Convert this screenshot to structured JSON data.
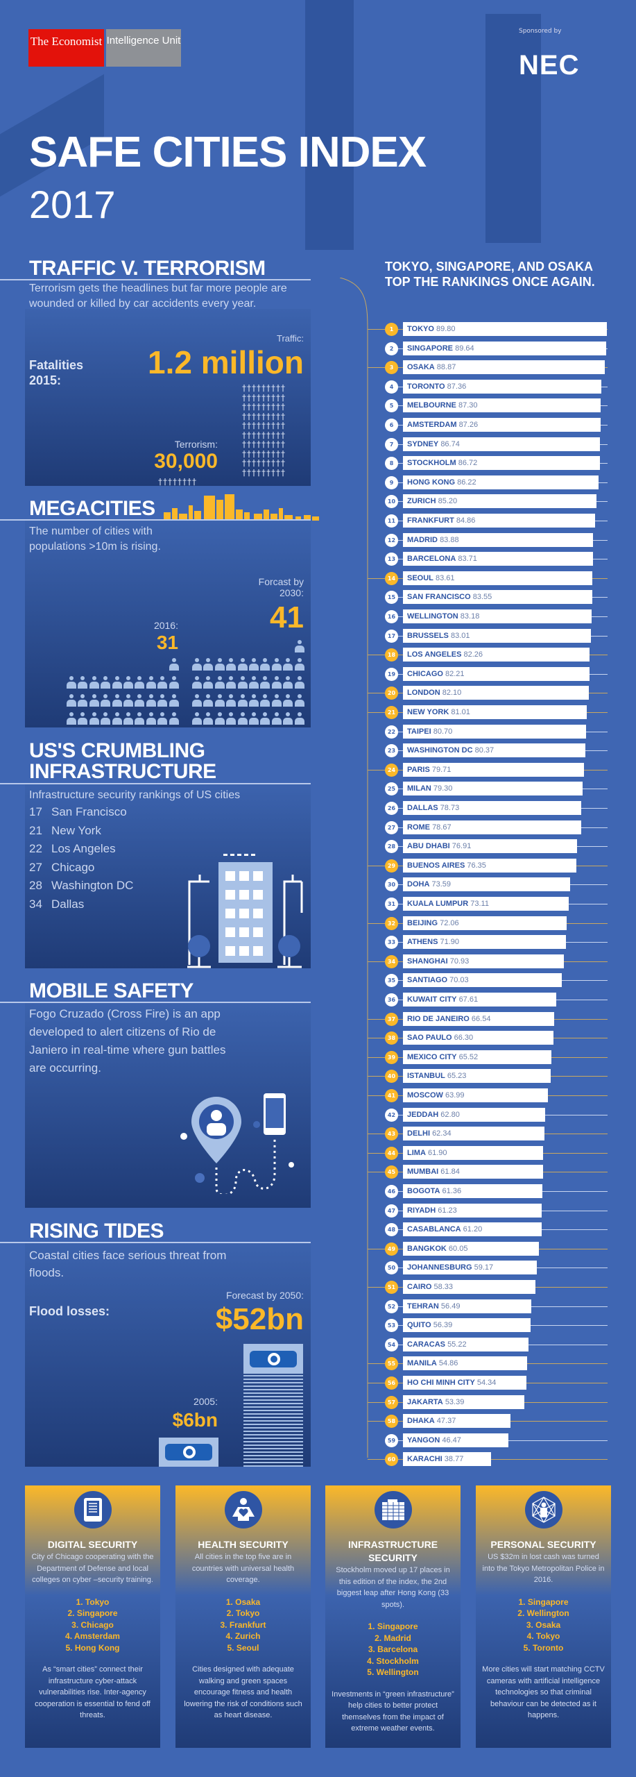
{
  "header": {
    "logo_left": "The Economist",
    "logo_right": "Intelligence Unit",
    "sponsored_by": "Sponsored by",
    "sponsor": "NEC",
    "title": "SAFE CITIES INDEX",
    "year": "2017"
  },
  "traffic": {
    "title": "TRAFFIC V. TERRORISM",
    "desc": "Terrorism gets the headlines but far more people are wounded or killed by car accidents every year.",
    "fatalities_label": "Fatalities 2015:",
    "traffic_label": "Traffic:",
    "traffic_value": "1.2 million",
    "terrorism_label": "Terrorism:",
    "terrorism_value": "30,000",
    "cross_icon": "cross-icon"
  },
  "megacities": {
    "title": "MEGACITIES",
    "desc": "The number of cities with populations >10m is rising.",
    "label_2016": "2016:",
    "value_2016": "31",
    "label_2030": "Forcast by 2030:",
    "value_2030": "41",
    "count_2016": 31,
    "count_2030": 41
  },
  "infrastructure_us": {
    "title": "US'S CRUMBLING INFRASTRUCTURE",
    "desc": "Infrastructure security rankings of US cities",
    "rows": [
      {
        "rank": "17",
        "city": "San Francisco"
      },
      {
        "rank": "21",
        "city": "New York"
      },
      {
        "rank": "22",
        "city": "Los Angeles"
      },
      {
        "rank": "27",
        "city": "Chicago"
      },
      {
        "rank": "28",
        "city": "Washington DC"
      },
      {
        "rank": "34",
        "city": "Dallas"
      }
    ]
  },
  "mobile": {
    "title": "MOBILE SAFETY",
    "desc": "Fogo Cruzado (Cross Fire) is an app developed to alert citizens of Rio de Janiero in real-time where gun battles are occurring."
  },
  "tides": {
    "title": "RISING TIDES",
    "desc": "Coastal cities face serious threat from floods.",
    "flood_label": "Flood losses:",
    "label_2050": "Forecast by 2050:",
    "value_2050": "$52bn",
    "label_2005": "2005:",
    "value_2005": "$6bn"
  },
  "rankings": {
    "heading": "TOKYO, SINGAPORE, AND OSAKA TOP THE RANKINGS ONCE AGAIN.",
    "colors": {
      "megacity_badge": "#fbb829",
      "other_badge": "#ffffff",
      "bar": "#ffffff",
      "city_text": "#2f55a4"
    },
    "items": [
      {
        "rank": 1,
        "city": "TOKYO",
        "score": "89.80",
        "megacity": true
      },
      {
        "rank": 2,
        "city": "SINGAPORE",
        "score": "89.64",
        "megacity": false
      },
      {
        "rank": 3,
        "city": "OSAKA",
        "score": "88.87",
        "megacity": true
      },
      {
        "rank": 4,
        "city": "TORONTO",
        "score": "87.36",
        "megacity": false
      },
      {
        "rank": 5,
        "city": "MELBOURNE",
        "score": "87.30",
        "megacity": false
      },
      {
        "rank": 6,
        "city": "AMSTERDAM",
        "score": "87.26",
        "megacity": false
      },
      {
        "rank": 7,
        "city": "SYDNEY",
        "score": "86.74",
        "megacity": false
      },
      {
        "rank": 8,
        "city": "STOCKHOLM",
        "score": "86.72",
        "megacity": false
      },
      {
        "rank": 9,
        "city": "HONG KONG",
        "score": "86.22",
        "megacity": false
      },
      {
        "rank": 10,
        "city": "ZURICH",
        "score": "85.20",
        "megacity": false
      },
      {
        "rank": 11,
        "city": "FRANKFURT",
        "score": "84.86",
        "megacity": false
      },
      {
        "rank": 12,
        "city": "MADRID",
        "score": "83.88",
        "megacity": false
      },
      {
        "rank": 13,
        "city": "BARCELONA",
        "score": "83.71",
        "megacity": false
      },
      {
        "rank": 14,
        "city": "SEOUL",
        "score": "83.61",
        "megacity": true
      },
      {
        "rank": 15,
        "city": "SAN FRANCISCO",
        "score": "83.55",
        "megacity": false
      },
      {
        "rank": 16,
        "city": "WELLINGTON",
        "score": "83.18",
        "megacity": false
      },
      {
        "rank": 17,
        "city": "BRUSSELS",
        "score": "83.01",
        "megacity": false
      },
      {
        "rank": 18,
        "city": "LOS ANGELES",
        "score": "82.26",
        "megacity": true
      },
      {
        "rank": 19,
        "city": "CHICAGO",
        "score": "82.21",
        "megacity": false
      },
      {
        "rank": 20,
        "city": "LONDON",
        "score": "82.10",
        "megacity": true
      },
      {
        "rank": 21,
        "city": "NEW YORK",
        "score": "81.01",
        "megacity": true
      },
      {
        "rank": 22,
        "city": "TAIPEI",
        "score": "80.70",
        "megacity": false
      },
      {
        "rank": 23,
        "city": "WASHINGTON DC",
        "score": "80.37",
        "megacity": false
      },
      {
        "rank": 24,
        "city": "PARIS",
        "score": "79.71",
        "megacity": true
      },
      {
        "rank": 25,
        "city": "MILAN",
        "score": "79.30",
        "megacity": false
      },
      {
        "rank": 26,
        "city": "DALLAS",
        "score": "78.73",
        "megacity": false
      },
      {
        "rank": 27,
        "city": "ROME",
        "score": "78.67",
        "megacity": false
      },
      {
        "rank": 28,
        "city": "ABU DHABI",
        "score": "76.91",
        "megacity": false
      },
      {
        "rank": 29,
        "city": "BUENOS AIRES",
        "score": "76.35",
        "megacity": true
      },
      {
        "rank": 30,
        "city": "DOHA",
        "score": "73.59",
        "megacity": false
      },
      {
        "rank": 31,
        "city": "KUALA LUMPUR",
        "score": "73.11",
        "megacity": false
      },
      {
        "rank": 32,
        "city": "BEIJING",
        "score": "72.06",
        "megacity": true
      },
      {
        "rank": 33,
        "city": "ATHENS",
        "score": "71.90",
        "megacity": false
      },
      {
        "rank": 34,
        "city": "SHANGHAI",
        "score": "70.93",
        "megacity": true
      },
      {
        "rank": 35,
        "city": "SANTIAGO",
        "score": "70.03",
        "megacity": false
      },
      {
        "rank": 36,
        "city": "KUWAIT CITY",
        "score": "67.61",
        "megacity": false
      },
      {
        "rank": 37,
        "city": "RIO DE JANEIRO",
        "score": "66.54",
        "megacity": true
      },
      {
        "rank": 38,
        "city": "SAO PAULO",
        "score": "66.30",
        "megacity": true
      },
      {
        "rank": 39,
        "city": "MEXICO CITY",
        "score": "65.52",
        "megacity": true
      },
      {
        "rank": 40,
        "city": "ISTANBUL",
        "score": "65.23",
        "megacity": true
      },
      {
        "rank": 41,
        "city": "MOSCOW",
        "score": "63.99",
        "megacity": true
      },
      {
        "rank": 42,
        "city": "JEDDAH",
        "score": "62.80",
        "megacity": false
      },
      {
        "rank": 43,
        "city": "DELHI",
        "score": "62.34",
        "megacity": true
      },
      {
        "rank": 44,
        "city": "LIMA",
        "score": "61.90",
        "megacity": true
      },
      {
        "rank": 45,
        "city": "MUMBAI",
        "score": "61.84",
        "megacity": true
      },
      {
        "rank": 46,
        "city": "BOGOTA",
        "score": "61.36",
        "megacity": false
      },
      {
        "rank": 47,
        "city": "RIYADH",
        "score": "61.23",
        "megacity": false
      },
      {
        "rank": 48,
        "city": "CASABLANCA",
        "score": "61.20",
        "megacity": false
      },
      {
        "rank": 49,
        "city": "BANGKOK",
        "score": "60.05",
        "megacity": true
      },
      {
        "rank": 50,
        "city": "JOHANNESBURG",
        "score": "59.17",
        "megacity": false
      },
      {
        "rank": 51,
        "city": "CAIRO",
        "score": "58.33",
        "megacity": true
      },
      {
        "rank": 52,
        "city": "TEHRAN",
        "score": "56.49",
        "megacity": false
      },
      {
        "rank": 53,
        "city": "QUITO",
        "score": "56.39",
        "megacity": false
      },
      {
        "rank": 54,
        "city": "CARACAS",
        "score": "55.22",
        "megacity": false
      },
      {
        "rank": 55,
        "city": "MANILA",
        "score": "54.86",
        "megacity": true
      },
      {
        "rank": 56,
        "city": "HO CHI MINH CITY",
        "score": "54.34",
        "megacity": true
      },
      {
        "rank": 57,
        "city": "JAKARTA",
        "score": "53.39",
        "megacity": true
      },
      {
        "rank": 58,
        "city": "DHAKA",
        "score": "47.37",
        "megacity": true
      },
      {
        "rank": 59,
        "city": "YANGON",
        "score": "46.47",
        "megacity": false
      },
      {
        "rank": 60,
        "city": "KARACHI",
        "score": "38.77",
        "megacity": true
      }
    ]
  },
  "panels": [
    {
      "icon": "tablet-icon",
      "title": "DIGITAL SECURITY",
      "text": "City of Chicago cooperating with the Department of Defense and local colleges on cyber –security training.",
      "list": [
        "1. Tokyo",
        "2. Singapore",
        "3. Chicago",
        "4. Amsterdam",
        "5. Hong Kong"
      ],
      "footer": "As “smart cities” connect their infrastructure cyber-attack vulnerabilities rise. Inter-agency cooperation is essential to fend off threats."
    },
    {
      "icon": "heart-person-icon",
      "title": "HEALTH SECURITY",
      "text": "All cities in the top five are in countries with universal health coverage.",
      "list": [
        "1. Osaka",
        "2. Tokyo",
        "3. Frankfurt",
        "4. Zurich",
        "5. Seoul"
      ],
      "footer": "Cities designed with adequate walking and green spaces encourage fitness and health lowering the risk of conditions such as heart disease."
    },
    {
      "icon": "building-icon",
      "title": "INFRASTRUCTURE SECURITY",
      "text": "Stockholm moved up 17 places in this edition of the index, the 2nd biggest leap after Hong Kong (33 spots).",
      "list": [
        "1. Singapore",
        "2. Madrid",
        "3. Barcelona",
        "4. Stockholm",
        "5. Wellington"
      ],
      "footer": "Investments in “green infrastructure” help cities to better protect themselves from the impact of extreme weather events."
    },
    {
      "icon": "network-person-icon",
      "title": "PERSONAL SECURITY",
      "text": "US $32m in lost cash was turned into the Tokyo Metropolitan Police in 2016.",
      "list": [
        "1. Singapore",
        "2. Wellington",
        "3. Osaka",
        "4. Tokyo",
        "5. Toronto"
      ],
      "footer": "More cities will start matching CCTV cameras with artificial intelligence technologies so that criminal behaviour can be detected as it happens."
    }
  ]
}
